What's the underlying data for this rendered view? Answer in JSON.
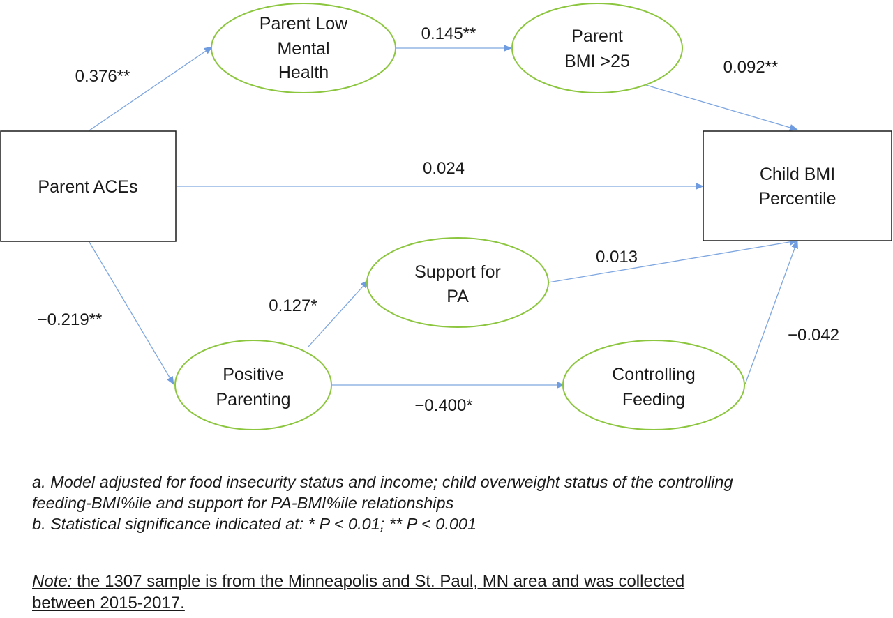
{
  "nodes": {
    "parent_aces": [
      "Parent ACEs"
    ],
    "parent_low_mental_health": [
      "Parent Low",
      "Mental",
      "Health"
    ],
    "parent_bmi": [
      "Parent",
      "BMI >25"
    ],
    "child_bmi_percentile": [
      "Child BMI",
      "Percentile"
    ],
    "support_for_pa": [
      "Support for",
      "PA"
    ],
    "positive_parenting": [
      "Positive",
      "Parenting"
    ],
    "controlling_feeding": [
      "Controlling",
      "Feeding"
    ]
  },
  "paths": {
    "aces_to_mental_health": "0.376**",
    "mental_health_to_bmi": "0.145**",
    "bmi_to_child": "0.092**",
    "aces_to_child": "0.024",
    "aces_to_parenting": "−0.219**",
    "parenting_to_support": "0.127*",
    "support_to_child": "0.013",
    "parenting_to_feeding": "−0.400*",
    "feeding_to_child": "−0.042"
  },
  "footnotes": {
    "a_line1": "a. Model adjusted for food insecurity status and income; child overweight status of the controlling",
    "a_line2": "feeding-BMI%ile and support for PA-BMI%ile relationships",
    "b": "b. Statistical significance indicated at: * P < 0.01; ** P < 0.001"
  },
  "note": {
    "label": "Note:",
    "line1_rest": " the 1307 sample is from the Minneapolis and St. Paul, MN area and was collected",
    "line2": "between 2015-2017."
  },
  "colors": {
    "ellipse_stroke": "#8cc63f",
    "arrow": "#7ea6e0",
    "box_stroke": "#1a1a1a"
  }
}
